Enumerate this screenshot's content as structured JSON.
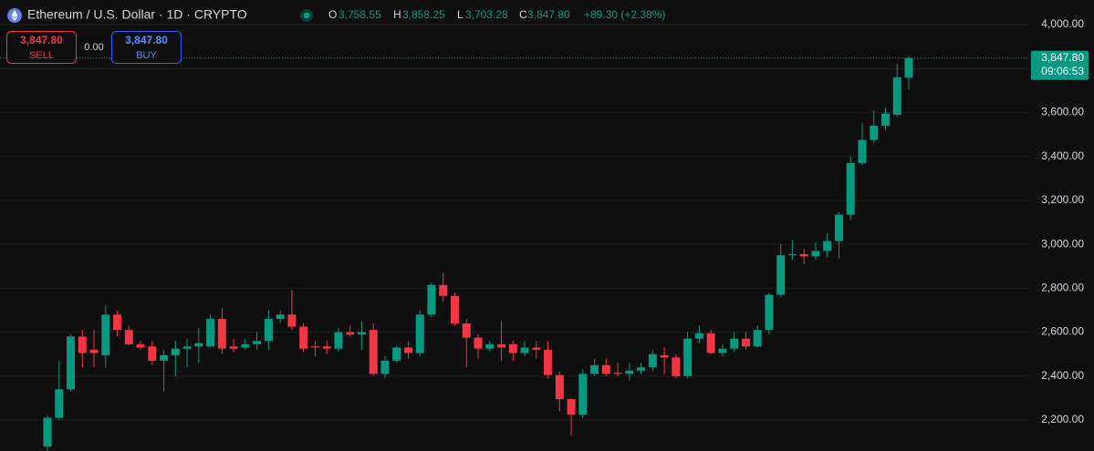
{
  "header": {
    "symbol": "Ethereum / U.S. Dollar · 1D · CRYPTO",
    "o": "O",
    "open": "3,758.55",
    "h": "H",
    "high": "3,858.25",
    "l": "L",
    "low": "3,703.28",
    "c": "C",
    "close": "3,847.80",
    "change": "+89.30 (+2.38%)"
  },
  "trade": {
    "sell_price": "3,847.80",
    "sell": "SELL",
    "spread": "0.00",
    "buy_price": "3,847.80",
    "buy": "BUY"
  },
  "chart_data": {
    "type": "candlestick",
    "up_color": "#089981",
    "down_color": "#f23645",
    "grid": true,
    "ylim": [
      2059,
      4112
    ],
    "yticks": [
      {
        "value": 2200,
        "label": "2,200.00"
      },
      {
        "value": 2400,
        "label": "2,400.00"
      },
      {
        "value": 2600,
        "label": "2,600.00"
      },
      {
        "value": 2800,
        "label": "2,800.00"
      },
      {
        "value": 3000,
        "label": "3,000.00"
      },
      {
        "value": 3200,
        "label": "3,200.00"
      },
      {
        "value": 3400,
        "label": "3,400.00"
      },
      {
        "value": 3600,
        "label": "3,600.00"
      },
      {
        "value": 3800,
        "label": "3,800.00"
      },
      {
        "value": 4000,
        "label": "4,000.00"
      }
    ],
    "last_price": {
      "value": 3847.8,
      "label": "3,847.80",
      "countdown": "09:06:53"
    },
    "open": [
      2080,
      2210,
      2340,
      2580,
      2520,
      2495,
      2680,
      2610,
      2545,
      2535,
      2470,
      2495,
      2525,
      2535,
      2535,
      2660,
      2535,
      2530,
      2545,
      2560,
      2660,
      2680,
      2625,
      2535,
      2535,
      2525,
      2600,
      2590,
      2610,
      2410,
      2470,
      2530,
      2505,
      2680,
      2815,
      2765,
      2640,
      2575,
      2525,
      2545,
      2545,
      2505,
      2530,
      2520,
      2405,
      2295,
      2225,
      2410,
      2450,
      2415,
      2410,
      2425,
      2440,
      2495,
      2485,
      2400,
      2570,
      2595,
      2505,
      2525,
      2570,
      2535,
      2610,
      2770,
      2950,
      2955,
      2945,
      2970,
      3015,
      3135,
      3370,
      3475,
      3540,
      3590,
      3758.55
    ],
    "high": [
      2220,
      2470,
      2590,
      2610,
      2610,
      2720,
      2700,
      2630,
      2560,
      2560,
      2520,
      2560,
      2570,
      2620,
      2680,
      2710,
      2570,
      2570,
      2600,
      2700,
      2700,
      2790,
      2640,
      2560,
      2560,
      2620,
      2630,
      2650,
      2640,
      2490,
      2540,
      2560,
      2700,
      2825,
      2870,
      2780,
      2660,
      2590,
      2560,
      2650,
      2560,
      2560,
      2560,
      2560,
      2420,
      2300,
      2430,
      2480,
      2480,
      2460,
      2460,
      2460,
      2520,
      2530,
      2500,
      2600,
      2630,
      2610,
      2545,
      2600,
      2600,
      2630,
      2780,
      3000,
      3020,
      2980,
      3010,
      3050,
      3145,
      3400,
      3550,
      3610,
      3620,
      3820,
      3858.25
    ],
    "low": [
      2060,
      2200,
      2330,
      2440,
      2440,
      2440,
      2580,
      2540,
      2520,
      2450,
      2330,
      2400,
      2440,
      2460,
      2530,
      2500,
      2510,
      2520,
      2520,
      2520,
      2640,
      2610,
      2510,
      2490,
      2500,
      2510,
      2580,
      2520,
      2400,
      2390,
      2460,
      2480,
      2490,
      2670,
      2740,
      2630,
      2440,
      2480,
      2510,
      2470,
      2470,
      2490,
      2480,
      2390,
      2240,
      2130,
      2210,
      2400,
      2400,
      2400,
      2380,
      2410,
      2420,
      2410,
      2390,
      2390,
      2550,
      2500,
      2490,
      2510,
      2520,
      2530,
      2590,
      2760,
      2930,
      2910,
      2930,
      2940,
      2935,
      3110,
      3360,
      3460,
      3520,
      3580,
      3703.28
    ],
    "close": [
      2210,
      2340,
      2580,
      2505,
      2505,
      2680,
      2610,
      2545,
      2530,
      2470,
      2495,
      2525,
      2535,
      2550,
      2660,
      2525,
      2525,
      2545,
      2560,
      2660,
      2680,
      2625,
      2525,
      2530,
      2525,
      2600,
      2590,
      2600,
      2410,
      2470,
      2530,
      2505,
      2680,
      2815,
      2765,
      2640,
      2575,
      2525,
      2545,
      2530,
      2505,
      2530,
      2520,
      2405,
      2295,
      2225,
      2410,
      2450,
      2410,
      2410,
      2425,
      2440,
      2500,
      2485,
      2400,
      2570,
      2595,
      2505,
      2525,
      2570,
      2535,
      2610,
      2770,
      2950,
      2955,
      2945,
      2970,
      3015,
      3135,
      3370,
      3475,
      3540,
      3595,
      3760,
      3847.8
    ]
  }
}
